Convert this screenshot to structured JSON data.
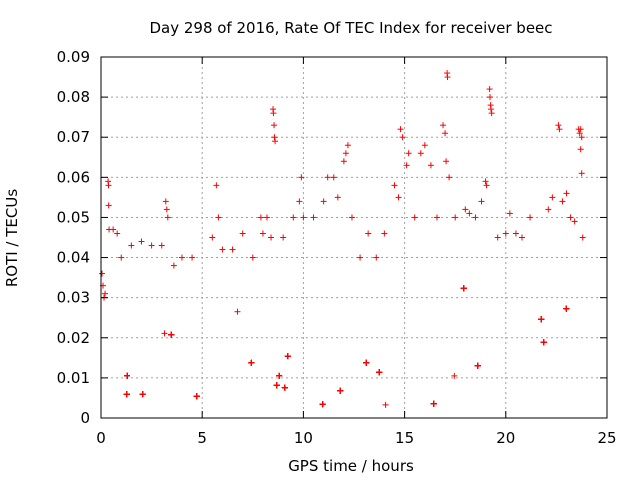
{
  "chart_data": {
    "type": "scatter",
    "title": "Day 298 of 2016, Rate Of TEC Index for receiver beec",
    "xlabel": "GPS time / hours",
    "ylabel": "ROTI / TECUs",
    "xlim": [
      0,
      25
    ],
    "ylim": [
      0,
      0.09
    ],
    "xticks": [
      "0",
      "5",
      "10",
      "15",
      "20",
      "25"
    ],
    "yticks": [
      "0",
      "0.01",
      "0.02",
      "0.03",
      "0.04",
      "0.05",
      "0.06",
      "0.07",
      "0.08",
      "0.09"
    ],
    "grid": true,
    "marker": "+",
    "color": "#ff0000",
    "x_data_range": [
      0,
      23.85
    ],
    "bulk_range": [
      0.003,
      0.03
    ],
    "series": [
      {
        "name": "ROTI",
        "points": [
          [
            0.05,
            0.036
          ],
          [
            0.1,
            0.033
          ],
          [
            0.15,
            0.03
          ],
          [
            0.2,
            0.031
          ],
          [
            0.35,
            0.059
          ],
          [
            0.37,
            0.058
          ],
          [
            0.38,
            0.053
          ],
          [
            0.4,
            0.047
          ],
          [
            0.6,
            0.047
          ],
          [
            0.8,
            0.046
          ],
          [
            1.0,
            0.04
          ],
          [
            1.5,
            0.043
          ],
          [
            2.0,
            0.044
          ],
          [
            2.5,
            0.043
          ],
          [
            3.0,
            0.043
          ],
          [
            3.2,
            0.054
          ],
          [
            3.25,
            0.052
          ],
          [
            3.3,
            0.05
          ],
          [
            3.6,
            0.038
          ],
          [
            4.0,
            0.04
          ],
          [
            4.5,
            0.04
          ],
          [
            5.5,
            0.045
          ],
          [
            5.7,
            0.058
          ],
          [
            5.8,
            0.05
          ],
          [
            6.0,
            0.042
          ],
          [
            6.5,
            0.042
          ],
          [
            7.0,
            0.046
          ],
          [
            7.5,
            0.04
          ],
          [
            7.9,
            0.05
          ],
          [
            8.0,
            0.046
          ],
          [
            8.2,
            0.05
          ],
          [
            8.4,
            0.045
          ],
          [
            8.5,
            0.077
          ],
          [
            8.52,
            0.076
          ],
          [
            8.55,
            0.073
          ],
          [
            8.57,
            0.07
          ],
          [
            8.6,
            0.069
          ],
          [
            9.0,
            0.045
          ],
          [
            9.5,
            0.05
          ],
          [
            9.8,
            0.054
          ],
          [
            9.9,
            0.06
          ],
          [
            10.0,
            0.05
          ],
          [
            10.5,
            0.05
          ],
          [
            11.0,
            0.054
          ],
          [
            11.2,
            0.06
          ],
          [
            11.5,
            0.06
          ],
          [
            11.7,
            0.055
          ],
          [
            12.0,
            0.064
          ],
          [
            12.1,
            0.066
          ],
          [
            12.2,
            0.068
          ],
          [
            12.4,
            0.05
          ],
          [
            12.8,
            0.04
          ],
          [
            13.2,
            0.046
          ],
          [
            13.6,
            0.04
          ],
          [
            14.0,
            0.046
          ],
          [
            14.5,
            0.058
          ],
          [
            14.7,
            0.055
          ],
          [
            14.8,
            0.072
          ],
          [
            14.9,
            0.07
          ],
          [
            15.1,
            0.063
          ],
          [
            15.2,
            0.066
          ],
          [
            15.5,
            0.05
          ],
          [
            15.8,
            0.066
          ],
          [
            16.0,
            0.068
          ],
          [
            16.3,
            0.063
          ],
          [
            16.6,
            0.05
          ],
          [
            16.9,
            0.073
          ],
          [
            17.0,
            0.071
          ],
          [
            17.05,
            0.064
          ],
          [
            17.1,
            0.086
          ],
          [
            17.12,
            0.085
          ],
          [
            17.2,
            0.06
          ],
          [
            17.5,
            0.05
          ],
          [
            18.0,
            0.052
          ],
          [
            18.2,
            0.051
          ],
          [
            18.5,
            0.05
          ],
          [
            18.8,
            0.054
          ],
          [
            19.0,
            0.059
          ],
          [
            19.05,
            0.058
          ],
          [
            19.2,
            0.082
          ],
          [
            19.22,
            0.08
          ],
          [
            19.25,
            0.078
          ],
          [
            19.27,
            0.077
          ],
          [
            19.3,
            0.076
          ],
          [
            19.6,
            0.045
          ],
          [
            20.0,
            0.046
          ],
          [
            20.2,
            0.051
          ],
          [
            20.5,
            0.046
          ],
          [
            20.8,
            0.045
          ],
          [
            21.2,
            0.05
          ],
          [
            22.1,
            0.052
          ],
          [
            22.3,
            0.055
          ],
          [
            22.6,
            0.073
          ],
          [
            22.65,
            0.072
          ],
          [
            22.8,
            0.054
          ],
          [
            23.0,
            0.056
          ],
          [
            23.2,
            0.05
          ],
          [
            23.4,
            0.049
          ],
          [
            23.6,
            0.072
          ],
          [
            23.65,
            0.071
          ],
          [
            23.7,
            0.072
          ],
          [
            23.75,
            0.07
          ],
          [
            23.7,
            0.067
          ],
          [
            23.75,
            0.061
          ],
          [
            23.8,
            0.045
          ]
        ]
      }
    ]
  }
}
